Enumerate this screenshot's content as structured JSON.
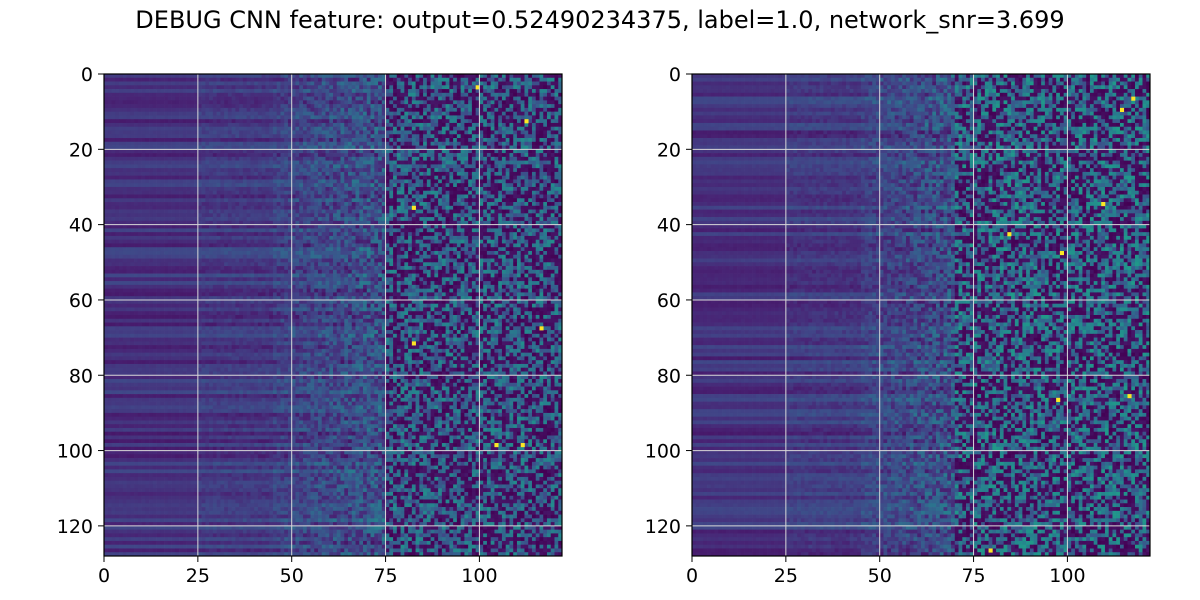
{
  "figure": {
    "title": "DEBUG CNN feature: output=0.52490234375, label=1.0, network_snr=3.699"
  },
  "chart_data": [
    {
      "type": "heatmap",
      "panel": "left",
      "colormap": "viridis",
      "rows": 128,
      "cols": 122,
      "xlim": [
        0,
        122
      ],
      "ylim": [
        128,
        0
      ],
      "xticks": [
        0,
        25,
        50,
        75,
        100
      ],
      "yticks": [
        0,
        20,
        40,
        60,
        80,
        100,
        120
      ],
      "grid": true,
      "value_range": [
        0,
        1
      ],
      "column_profile": {
        "low_flat_until": 25,
        "rising_from": 45,
        "noisy_from": 75,
        "typical_dark_value": 0.15,
        "typical_noisy_value": 0.45
      },
      "bright_spots": [
        [
          3,
          99
        ],
        [
          35,
          82
        ],
        [
          67,
          116
        ],
        [
          71,
          82
        ],
        [
          98,
          104
        ],
        [
          98,
          111
        ],
        [
          12,
          112
        ]
      ]
    },
    {
      "type": "heatmap",
      "panel": "right",
      "colormap": "viridis",
      "rows": 128,
      "cols": 122,
      "xlim": [
        0,
        122
      ],
      "ylim": [
        128,
        0
      ],
      "xticks": [
        0,
        25,
        50,
        75,
        100
      ],
      "yticks": [
        0,
        20,
        40,
        60,
        80,
        100,
        120
      ],
      "grid": true,
      "value_range": [
        0,
        1
      ],
      "column_profile": {
        "low_flat_until": 25,
        "rising_from": 45,
        "noisy_from": 70,
        "typical_dark_value": 0.15,
        "typical_noisy_value": 0.5
      },
      "bright_spots": [
        [
          9,
          114
        ],
        [
          42,
          84
        ],
        [
          34,
          109
        ],
        [
          47,
          98
        ],
        [
          86,
          97
        ],
        [
          85,
          116
        ],
        [
          126,
          79
        ],
        [
          6,
          117
        ]
      ]
    }
  ]
}
